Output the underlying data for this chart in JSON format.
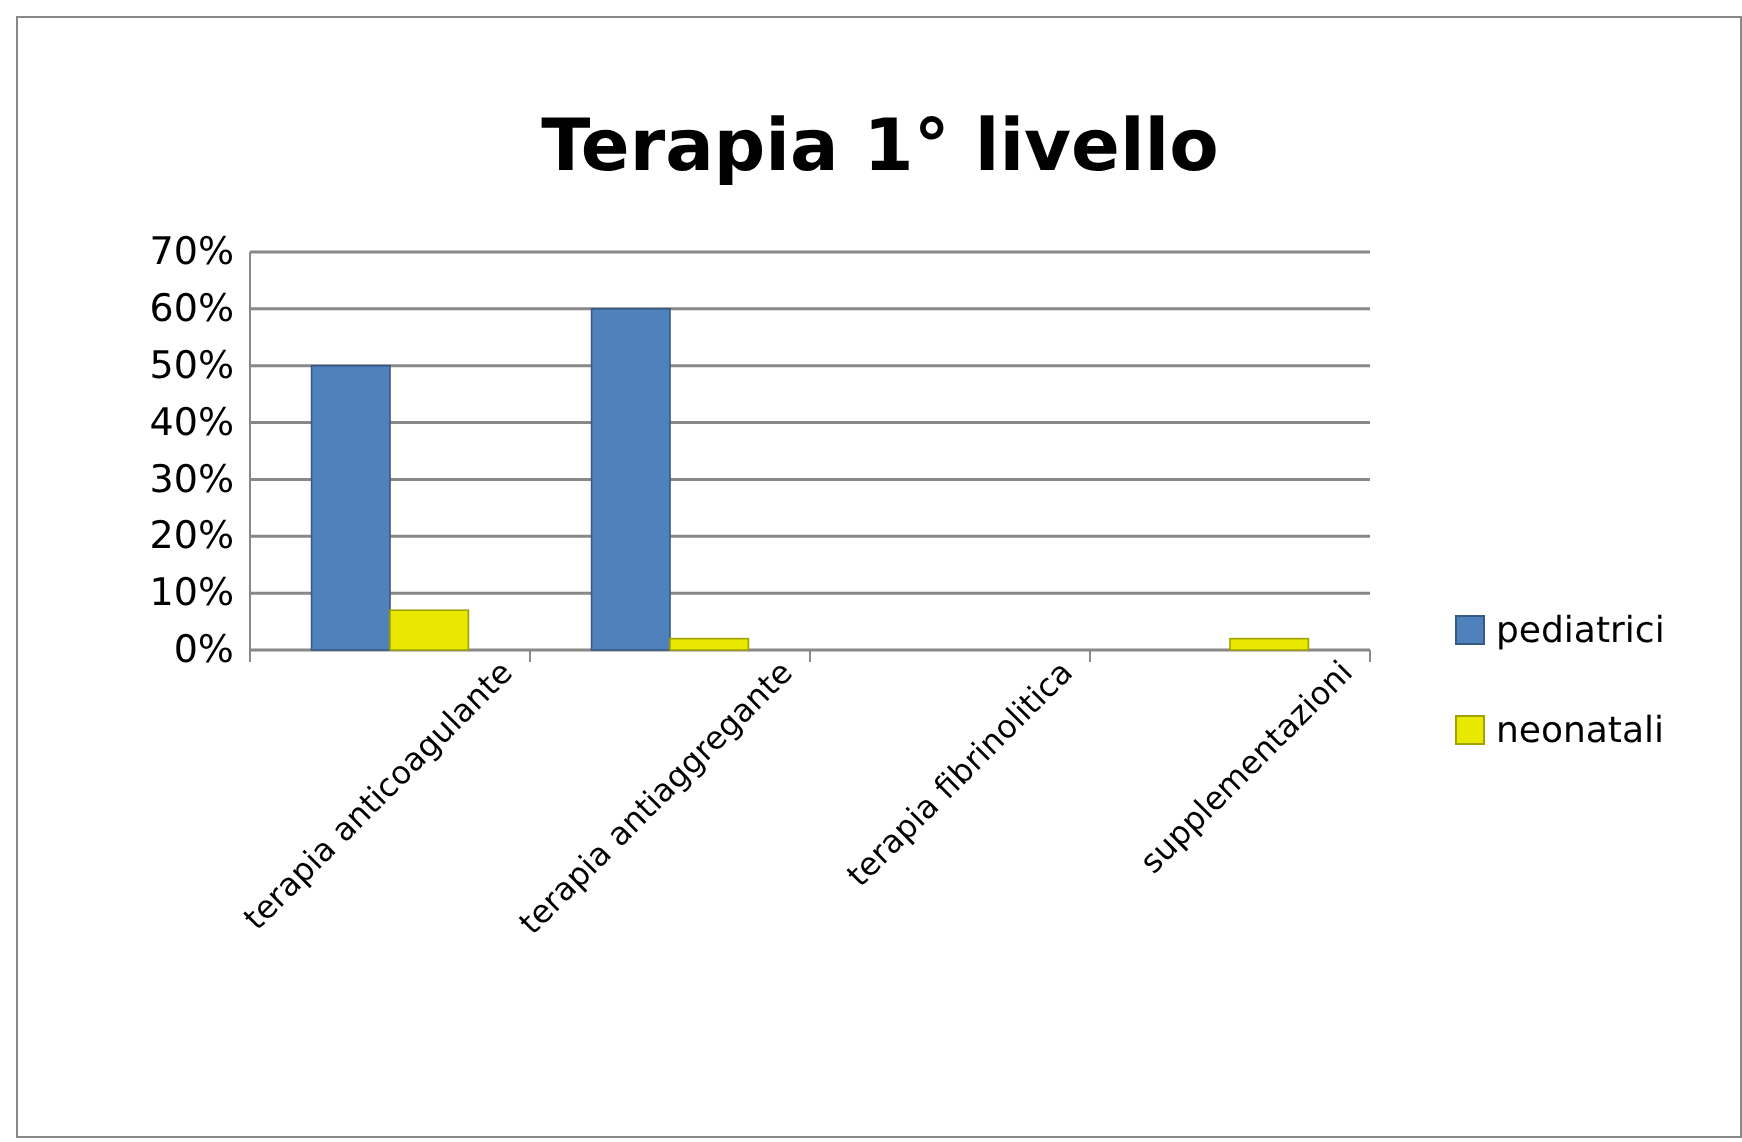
{
  "chart_data": {
    "type": "bar",
    "title": "Terapia 1° livello",
    "categories": [
      "terapia anticoagulante",
      "terapia antiaggregante",
      "terapia fibrinolitica",
      "supplementazioni"
    ],
    "series": [
      {
        "name": "pediatrici",
        "color": "#4f81bd",
        "values": [
          50,
          60,
          0,
          0
        ]
      },
      {
        "name": "neonatali",
        "color": "#e8e800",
        "values": [
          7,
          2,
          0,
          2
        ]
      }
    ],
    "ylim": [
      0,
      70
    ],
    "yticks": [
      {
        "value": 0,
        "label": "0%"
      },
      {
        "value": 10,
        "label": "10%"
      },
      {
        "value": 20,
        "label": "20%"
      },
      {
        "value": 30,
        "label": "30%"
      },
      {
        "value": 40,
        "label": "40%"
      },
      {
        "value": 50,
        "label": "50%"
      },
      {
        "value": 60,
        "label": "60%"
      },
      {
        "value": 70,
        "label": "70%"
      }
    ],
    "grid": "y",
    "legend": "right"
  }
}
